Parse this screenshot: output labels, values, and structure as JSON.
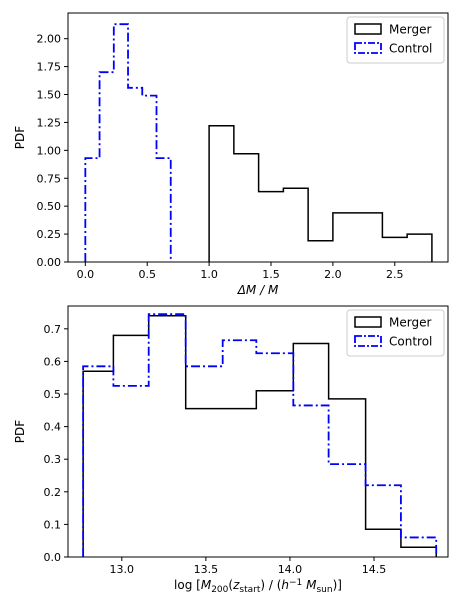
{
  "chart_data": [
    {
      "type": "histogram",
      "xlabel": "ΔM / M",
      "ylabel": "PDF",
      "xlim": [
        -0.14,
        2.93
      ],
      "ylim": [
        0,
        2.23
      ],
      "xticks": [
        0.0,
        0.5,
        1.0,
        1.5,
        2.0,
        2.5
      ],
      "xtick_labels": [
        "0.0",
        "0.5",
        "1.0",
        "1.5",
        "2.0",
        "2.5"
      ],
      "yticks": [
        0.0,
        0.25,
        0.5,
        0.75,
        1.0,
        1.25,
        1.5,
        1.75,
        2.0
      ],
      "ytick_labels": [
        "0.00",
        "0.25",
        "0.50",
        "0.75",
        "1.00",
        "1.25",
        "1.50",
        "1.75",
        "2.00"
      ],
      "legend": {
        "position": "top-right",
        "entries": [
          "Merger",
          "Control"
        ]
      },
      "series": [
        {
          "name": "Merger",
          "color": "#000000",
          "style": "solid",
          "bin_edges": [
            1.0,
            1.2,
            1.4,
            1.6,
            1.8,
            2.0,
            2.2,
            2.4,
            2.6,
            2.8
          ],
          "values": [
            1.22,
            0.97,
            0.63,
            0.66,
            0.19,
            0.44,
            0.44,
            0.22,
            0.25
          ]
        },
        {
          "name": "Control",
          "color": "#0000ff",
          "style": "dashdot",
          "bin_edges": [
            0.0,
            0.115,
            0.23,
            0.345,
            0.46,
            0.575,
            0.69
          ],
          "values": [
            0.93,
            1.7,
            2.13,
            1.56,
            1.49,
            0.93
          ]
        }
      ]
    },
    {
      "type": "histogram",
      "xlabel_parts": [
        "log [",
        "M",
        "200",
        "(",
        "z",
        "start",
        ") / (",
        "h",
        "−1",
        " M",
        "sun",
        ")]"
      ],
      "ylabel": "PDF",
      "xlim": [
        12.68,
        14.94
      ],
      "ylim": [
        0,
        0.77
      ],
      "xticks": [
        13.0,
        13.5,
        14.0,
        14.5
      ],
      "xtick_labels": [
        "13.0",
        "13.5",
        "14.0",
        "14.5"
      ],
      "yticks": [
        0.0,
        0.1,
        0.2,
        0.3,
        0.4,
        0.5,
        0.6,
        0.7
      ],
      "ytick_labels": [
        "0.0",
        "0.1",
        "0.2",
        "0.3",
        "0.4",
        "0.5",
        "0.6",
        "0.7"
      ],
      "legend": {
        "position": "top-right",
        "entries": [
          "Merger",
          "Control"
        ]
      },
      "series": [
        {
          "name": "Merger",
          "color": "#000000",
          "style": "solid",
          "bin_edges": [
            12.77,
            12.95,
            13.16,
            13.38,
            13.8,
            14.02,
            14.23,
            14.45,
            14.66,
            14.87
          ],
          "values": [
            0.57,
            0.68,
            0.74,
            0.455,
            0.51,
            0.655,
            0.485,
            0.085,
            0.03
          ]
        },
        {
          "name": "Control",
          "color": "#0000ff",
          "style": "dashdot",
          "bin_edges": [
            12.77,
            12.95,
            13.16,
            13.38,
            13.6,
            13.8,
            14.02,
            14.23,
            14.45,
            14.66,
            14.87
          ],
          "values": [
            0.585,
            0.525,
            0.745,
            0.585,
            0.665,
            0.625,
            0.465,
            0.285,
            0.22,
            0.06
          ]
        }
      ]
    }
  ]
}
